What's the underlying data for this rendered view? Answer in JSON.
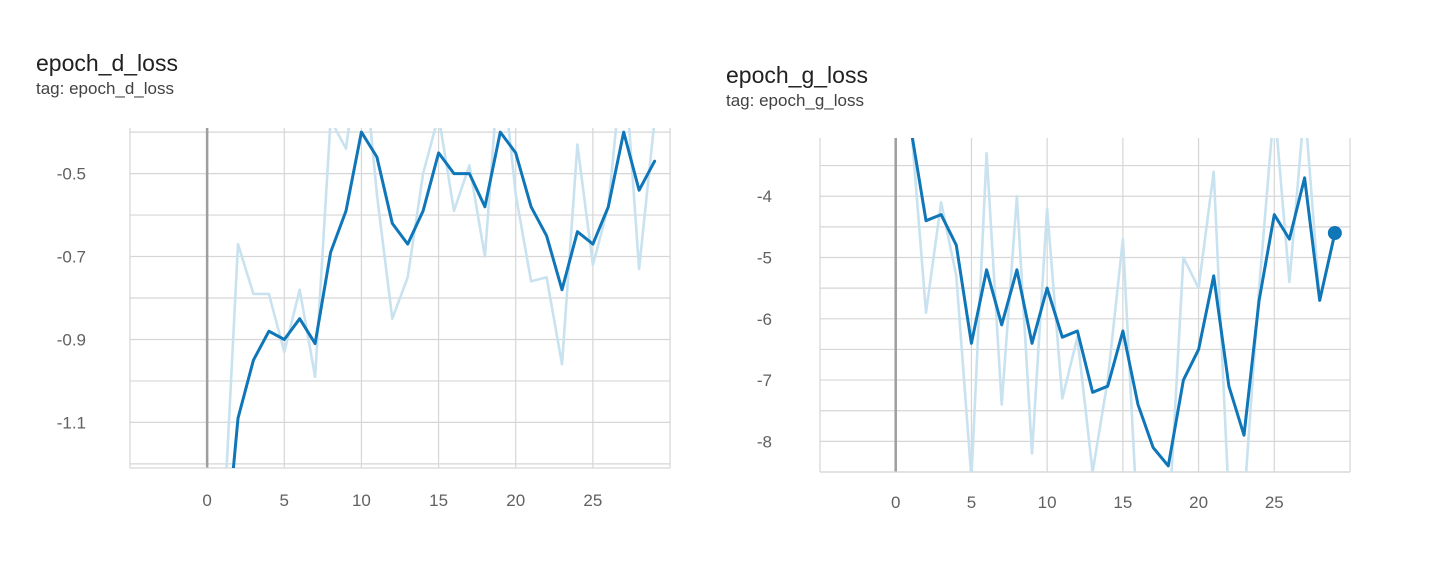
{
  "chart_data": [
    {
      "type": "line",
      "title": "epoch_d_loss",
      "subtitle": "tag: epoch_d_loss",
      "x_ticks": [
        0,
        5,
        10,
        15,
        20,
        25
      ],
      "y_ticks": [
        -0.5,
        -0.7,
        -0.9,
        -1.1
      ],
      "y_tick_labels": [
        "-0.5",
        "-0.7",
        "-0.9",
        "-1.1"
      ],
      "xlim": [
        -5,
        30
      ],
      "ylim": [
        -1.21,
        -0.39
      ],
      "grid": true,
      "colors": {
        "smoothed": "#0f76b8",
        "raw": "#c9e2f0",
        "zero_line": "#9e9e9e",
        "grid": "#d6d6d6",
        "tick_text": "#616161"
      },
      "series": [
        {
          "kind": "raw",
          "x": [
            1,
            2,
            3,
            4,
            5,
            6,
            7,
            8,
            9,
            10,
            11,
            12,
            13,
            14,
            15,
            16,
            17,
            18,
            19,
            20,
            21,
            22,
            23,
            24,
            25,
            26,
            27,
            28,
            29
          ],
          "values": [
            -1.4,
            -0.67,
            -0.79,
            -0.79,
            -0.93,
            -0.78,
            -0.99,
            -0.37,
            -0.44,
            -0.16,
            -0.55,
            -0.85,
            -0.75,
            -0.5,
            -0.36,
            -0.59,
            -0.48,
            -0.7,
            -0.2,
            -0.55,
            -0.76,
            -0.75,
            -0.96,
            -0.43,
            -0.72,
            -0.58,
            -0.2,
            -0.73,
            -0.37
          ]
        },
        {
          "kind": "smoothed",
          "x": [
            1.7,
            2,
            3,
            4,
            5,
            6,
            7,
            8,
            9,
            10,
            11,
            12,
            13,
            14,
            15,
            16,
            17,
            18,
            19,
            20,
            21,
            22,
            23,
            24,
            25,
            26,
            27,
            28,
            29
          ],
          "values": [
            -1.21,
            -1.09,
            -0.95,
            -0.88,
            -0.9,
            -0.85,
            -0.91,
            -0.69,
            -0.59,
            -0.4,
            -0.46,
            -0.62,
            -0.67,
            -0.59,
            -0.45,
            -0.5,
            -0.5,
            -0.58,
            -0.4,
            -0.45,
            -0.58,
            -0.65,
            -0.78,
            -0.64,
            -0.67,
            -0.58,
            -0.4,
            -0.54,
            -0.47
          ]
        }
      ]
    },
    {
      "type": "line",
      "title": "epoch_g_loss",
      "subtitle": "tag: epoch_g_loss",
      "x_ticks": [
        0,
        5,
        10,
        15,
        20,
        25
      ],
      "y_ticks": [
        -4,
        -5,
        -6,
        -7,
        -8
      ],
      "y_tick_labels": [
        "-4",
        "-5",
        "-6",
        "-7",
        "-8"
      ],
      "xlim": [
        -5,
        30
      ],
      "ylim": [
        -8.5,
        -3.05
      ],
      "grid": true,
      "colors": {
        "smoothed": "#0f76b8",
        "raw": "#c9e2f0",
        "zero_line": "#9e9e9e",
        "grid": "#d6d6d6",
        "tick_text": "#616161"
      },
      "series": [
        {
          "kind": "raw",
          "x": [
            1,
            2,
            3,
            4,
            5,
            6,
            7,
            8,
            9,
            10,
            11,
            12,
            13,
            14,
            15,
            16,
            17,
            18,
            19,
            20,
            21,
            22,
            23,
            24,
            25,
            26,
            27,
            28,
            29
          ],
          "values": [
            -2.8,
            -5.9,
            -4.1,
            -5.3,
            -8.6,
            -3.3,
            -7.4,
            -4.0,
            -8.2,
            -4.2,
            -7.3,
            -6.3,
            -8.5,
            -7.0,
            -4.7,
            -9.5,
            -9.0,
            -9.5,
            -5.0,
            -5.5,
            -3.6,
            -9.0,
            -9.0,
            -5.5,
            -2.5,
            -5.4,
            -2.5,
            -5.7,
            -4.6
          ]
        },
        {
          "kind": "smoothed",
          "x": [
            1.1,
            2,
            3,
            4,
            5,
            6,
            7,
            8,
            9,
            10,
            11,
            12,
            13,
            14,
            15,
            16,
            17,
            18,
            19,
            20,
            21,
            22,
            23,
            24,
            25,
            26,
            27,
            28,
            29
          ],
          "values": [
            -3.05,
            -4.4,
            -4.3,
            -4.8,
            -6.4,
            -5.2,
            -6.1,
            -5.2,
            -6.4,
            -5.5,
            -6.3,
            -6.2,
            -7.2,
            -7.1,
            -6.2,
            -7.4,
            -8.1,
            -8.4,
            -7.0,
            -6.5,
            -5.3,
            -7.1,
            -7.9,
            -5.7,
            -4.3,
            -4.7,
            -3.7,
            -5.7,
            -4.6
          ]
        }
      ],
      "highlight_point": {
        "x": 29,
        "y": -4.6
      }
    }
  ]
}
